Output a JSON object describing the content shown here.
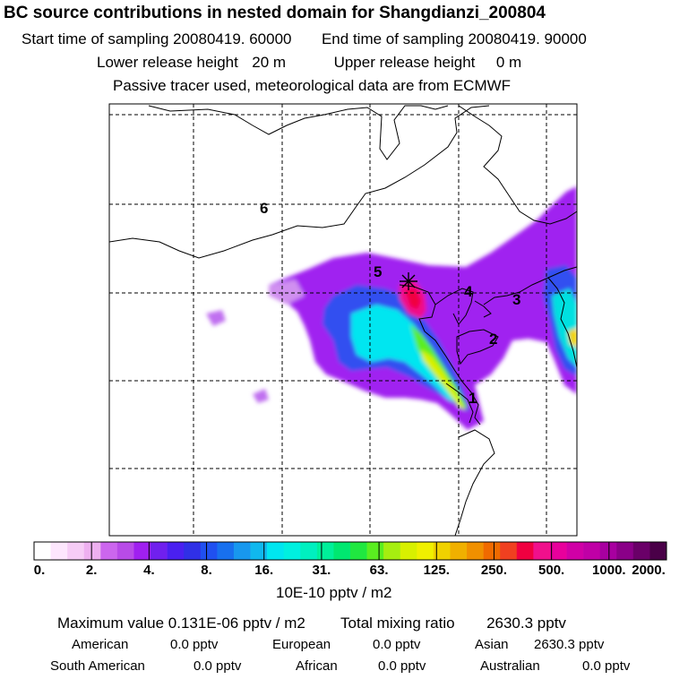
{
  "title": "BC  source contributions in nested domain for Shangdianzi_200804",
  "sampling": {
    "start_label": "Start time of sampling",
    "start_value": "20080419. 60000",
    "end_label": "End time of sampling",
    "end_value": "20080419. 90000"
  },
  "release": {
    "lower_label": "Lower release height",
    "lower_value": "20 m",
    "upper_label": "Upper release height",
    "upper_value": "0 m"
  },
  "note": "Passive tracer used, meteorological data are from ECMWF",
  "map": {
    "region_labels": [
      "1",
      "2",
      "3",
      "4",
      "5",
      "6"
    ],
    "receptor_marker": "star-icon"
  },
  "colorbar": {
    "ticks": [
      "0.",
      "2.",
      "4.",
      "8.",
      "16.",
      "31.",
      "63.",
      "125.",
      "250.",
      "500.",
      "1000.",
      "2000."
    ],
    "colors": [
      "#ffffff",
      "#fde6fd",
      "#f6ccf6",
      "#eeb0f0",
      "#cc66ee",
      "#b84be8",
      "#a020f0",
      "#7020ee",
      "#4a20f0",
      "#3030e6",
      "#2050f0",
      "#1870ee",
      "#1898ee",
      "#10b8ee",
      "#00e6f0",
      "#00f0e0",
      "#00f0c0",
      "#00f09a",
      "#00e870",
      "#20e840",
      "#5aee20",
      "#a6ee10",
      "#d8f000",
      "#f0f000",
      "#f0d200",
      "#f0b000",
      "#f09000",
      "#f06a00",
      "#f04020",
      "#f00040",
      "#f0108c",
      "#e8009c",
      "#d000a6",
      "#c000a6",
      "#a800a0",
      "#8a0088",
      "#6a0068",
      "#4a0048"
    ],
    "units": "10E-10 pptv / m2"
  },
  "summary": {
    "max_label": "Maximum value",
    "max_value": "0.131E-06 pptv / m2",
    "total_label": "Total mixing ratio",
    "total_value": "2630.3 pptv",
    "regions": [
      {
        "name": "American",
        "value": "0.0 pptv"
      },
      {
        "name": "European",
        "value": "0.0 pptv"
      },
      {
        "name": "Asian",
        "value": "2630.3 pptv"
      },
      {
        "name": "South American",
        "value": "0.0 pptv"
      },
      {
        "name": "African",
        "value": "0.0 pptv"
      },
      {
        "name": "Australian",
        "value": "0.0 pptv"
      }
    ]
  }
}
